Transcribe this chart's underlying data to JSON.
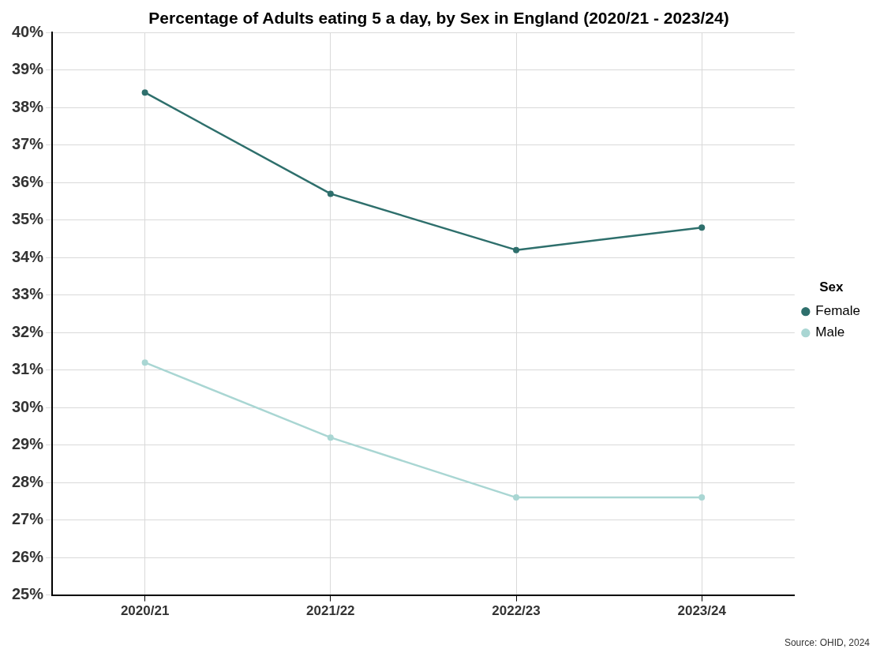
{
  "chart_data": {
    "type": "line",
    "title": "Percentage of Adults eating 5 a day, by Sex in England (2020/21 - 2023/24)",
    "categories": [
      "2020/21",
      "2021/22",
      "2022/23",
      "2023/24"
    ],
    "series": [
      {
        "name": "Female",
        "color": "#2e6f6c",
        "values": [
          38.4,
          35.7,
          34.2,
          34.8
        ]
      },
      {
        "name": "Male",
        "color": "#a9d6d3",
        "values": [
          31.2,
          29.2,
          27.6,
          27.6
        ]
      }
    ],
    "ylim": [
      25,
      40
    ],
    "yticks": [
      {
        "value": 25,
        "label": "25%"
      },
      {
        "value": 26,
        "label": "26%"
      },
      {
        "value": 27,
        "label": "27%"
      },
      {
        "value": 28,
        "label": "28%"
      },
      {
        "value": 29,
        "label": "29%"
      },
      {
        "value": 30,
        "label": "30%"
      },
      {
        "value": 31,
        "label": "31%"
      },
      {
        "value": 32,
        "label": "32%"
      },
      {
        "value": 33,
        "label": "33%"
      },
      {
        "value": 34,
        "label": "34%"
      },
      {
        "value": 35,
        "label": "35%"
      },
      {
        "value": 36,
        "label": "36%"
      },
      {
        "value": 37,
        "label": "37%"
      },
      {
        "value": 38,
        "label": "38%"
      },
      {
        "value": 39,
        "label": "39%"
      },
      {
        "value": 40,
        "label": "40%"
      }
    ],
    "legend": "right",
    "legend_title": "Sex",
    "grid": true,
    "marker": "circle",
    "line_style": "solid",
    "annotations": [
      "Source: OHID, 2024"
    ]
  }
}
